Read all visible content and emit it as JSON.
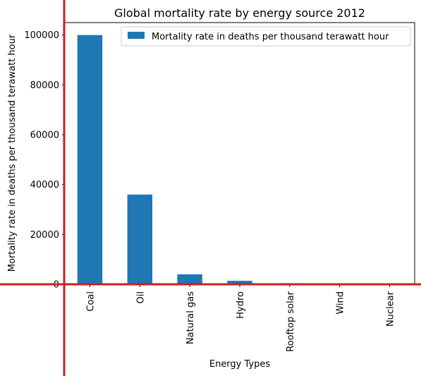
{
  "chart_data": {
    "type": "bar",
    "title": "Global mortality rate by energy source 2012",
    "xlabel": "Energy Types",
    "ylabel": "Mortality rate in deaths per thousand terawatt hour",
    "categories": [
      "Coal",
      "Oil",
      "Natural gas",
      "Hydro",
      "Rooftop solar",
      "Wind",
      "Nuclear"
    ],
    "series": [
      {
        "name": "Mortality rate in deaths per thousand terawatt hour",
        "values": [
          100000,
          36000,
          4000,
          1400,
          440,
          150,
          90
        ]
      }
    ],
    "ylim": [
      0,
      105000
    ],
    "yticks": [
      0,
      20000,
      40000,
      60000,
      80000,
      100000
    ],
    "grid": false,
    "legend": "top-right",
    "colors": {
      "bar": "#1f77b4",
      "axis": "#000000",
      "crosshair": "#cc1f1f"
    }
  }
}
